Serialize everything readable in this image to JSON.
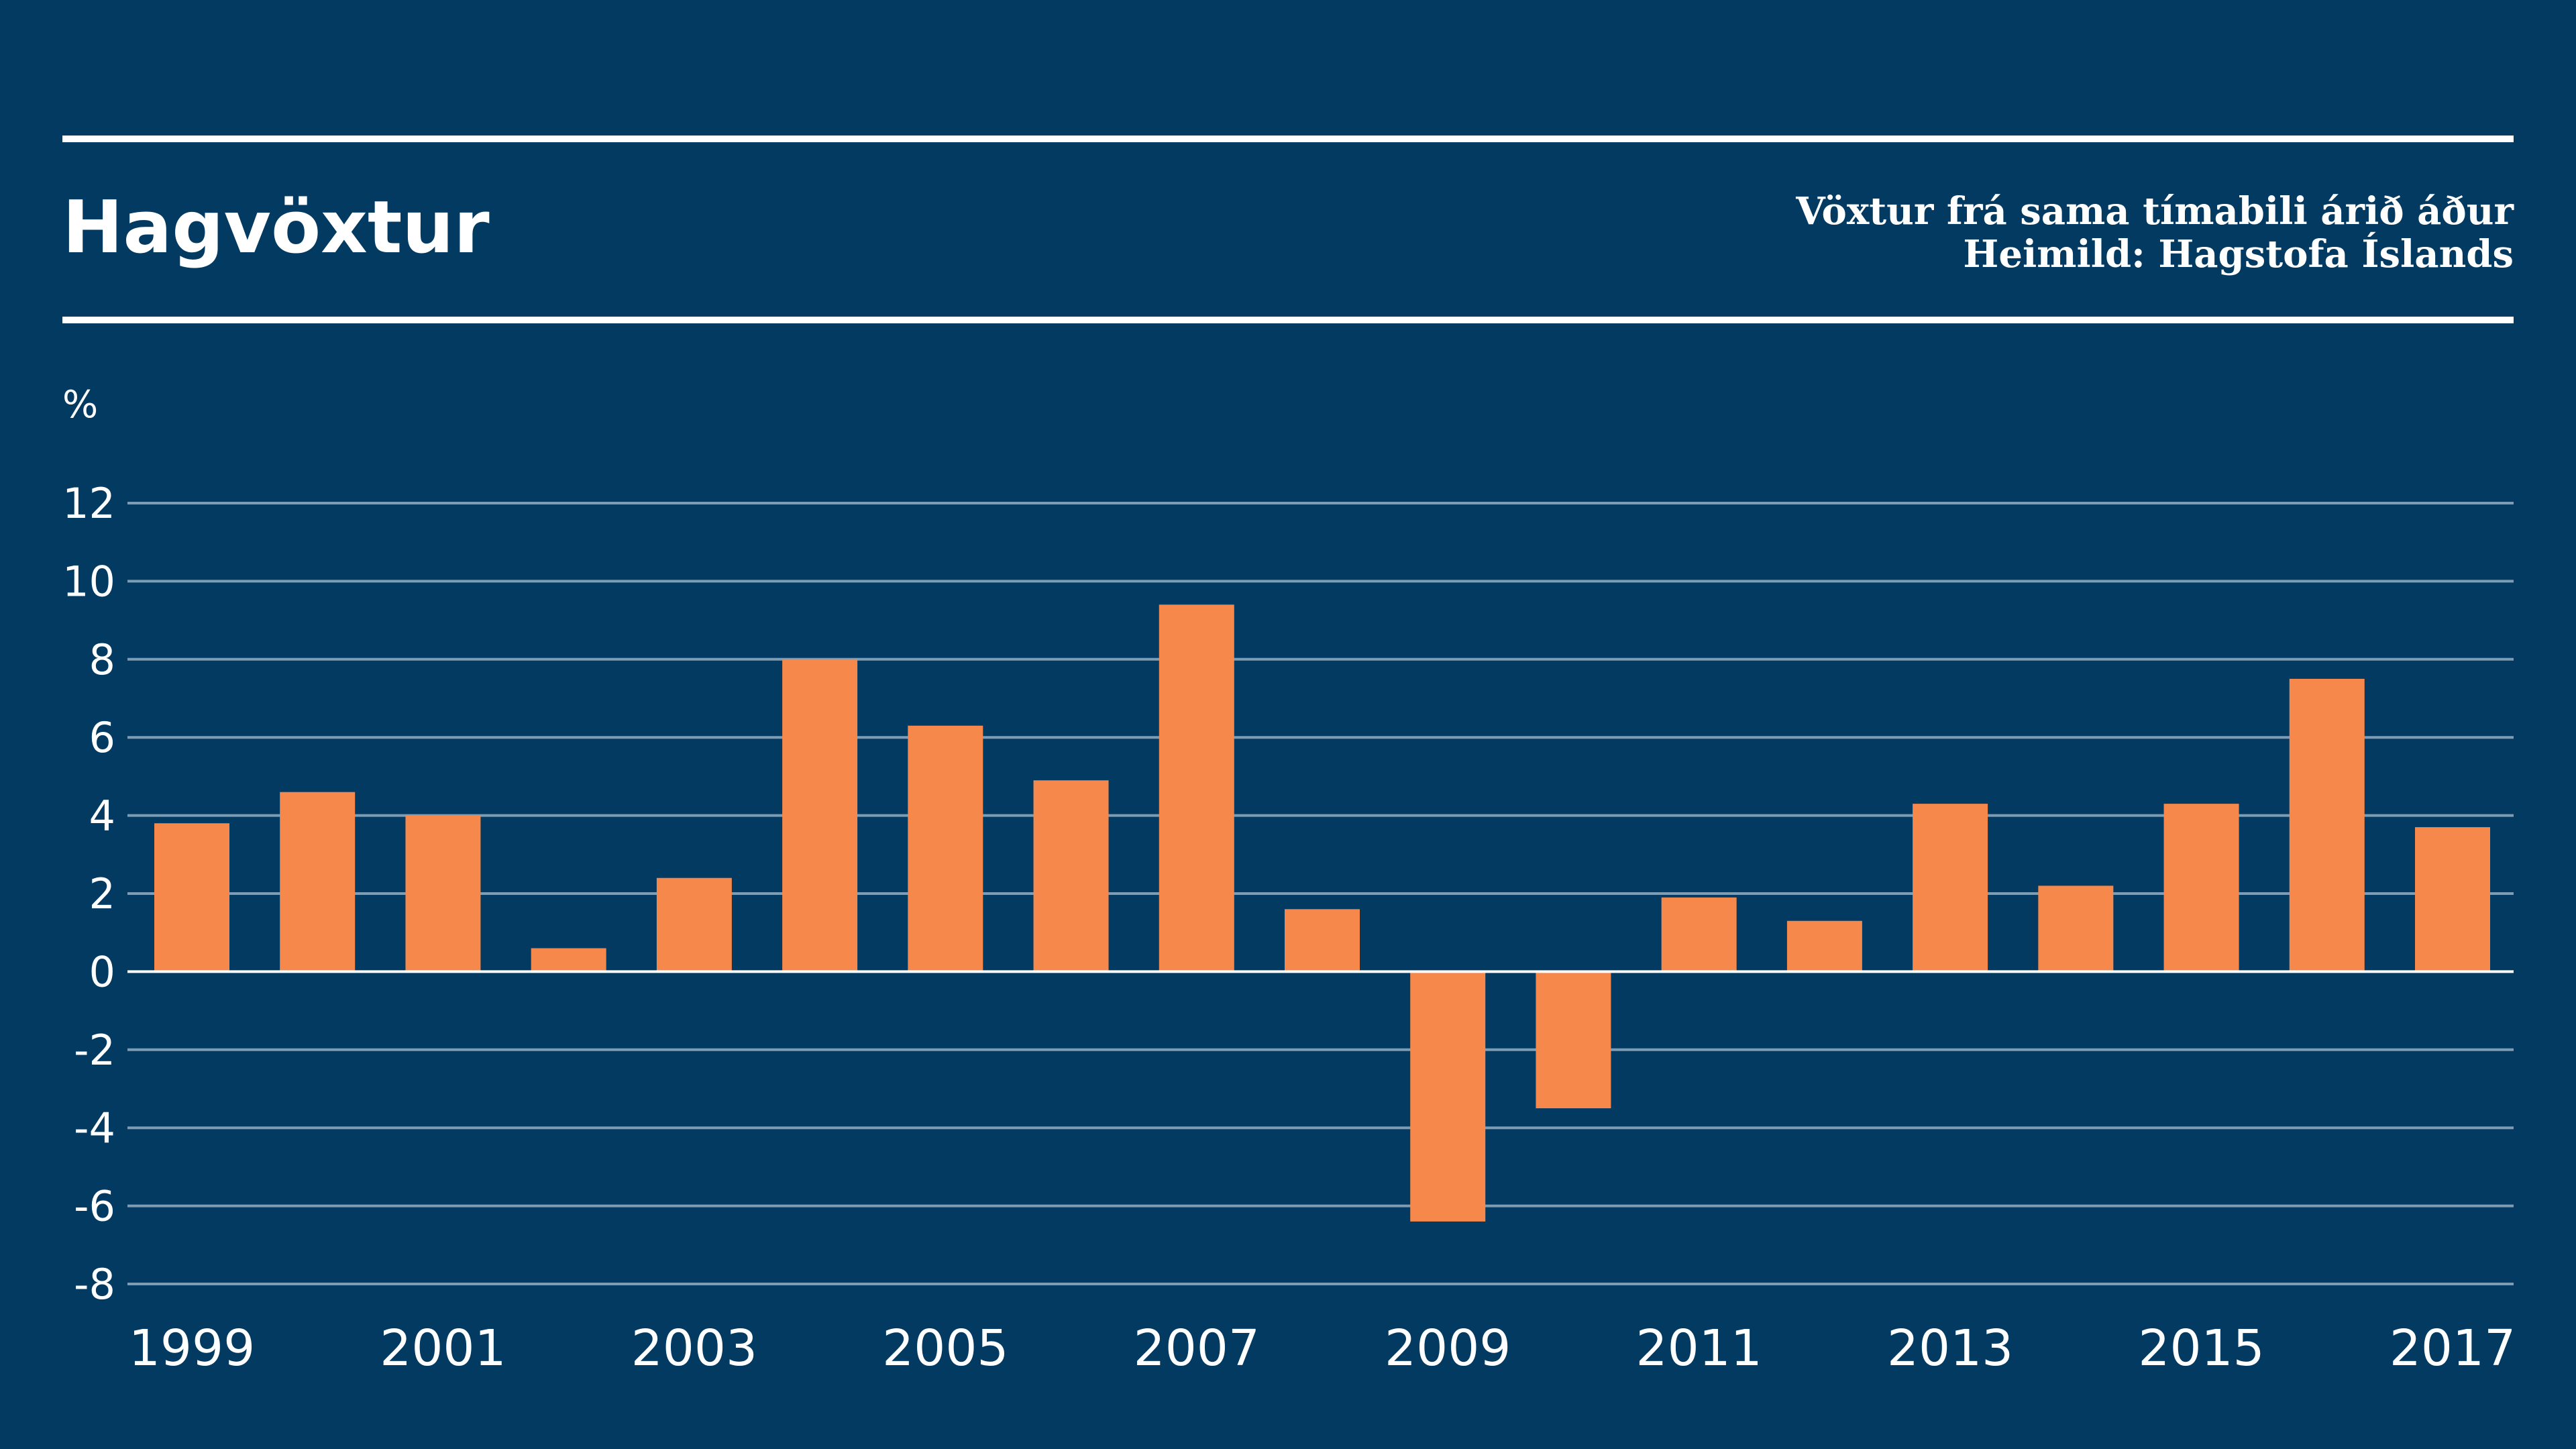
{
  "header": {
    "title": "Hagvöxtur",
    "subtitle": "Vöxtur frá sama tímabili árið áður",
    "source": "Heimild: Hagstofa Íslands"
  },
  "colors": {
    "background": "#023a62",
    "bar": "#f5884a",
    "grid": "#7f9cb5",
    "text": "#ffffff"
  },
  "chart_data": {
    "type": "bar",
    "title": "Hagvöxtur",
    "subtitle": "Vöxtur frá sama tímabili árið áður",
    "ylabel": "%",
    "ylim": [
      -8,
      12
    ],
    "yticks": [
      12,
      10,
      8,
      6,
      4,
      2,
      0,
      -2,
      -4,
      -6,
      -8
    ],
    "ytick_labels": [
      "12",
      "10",
      "8",
      "6",
      "4",
      "2",
      "0",
      "-2",
      "-4",
      "-6",
      "-8"
    ],
    "categories": [
      "1999",
      "2000",
      "2001",
      "2002",
      "2003",
      "2004",
      "2005",
      "2006",
      "2007",
      "2008",
      "2009",
      "2010",
      "2011",
      "2012",
      "2013",
      "2014",
      "2015",
      "2016",
      "2017"
    ],
    "xtick_labels": [
      "1999",
      "2001",
      "2003",
      "2005",
      "2007",
      "2009",
      "2011",
      "2013",
      "2015",
      "2017"
    ],
    "values": [
      3.8,
      4.6,
      4.0,
      0.6,
      2.4,
      8.0,
      6.3,
      4.9,
      9.4,
      1.6,
      -6.4,
      -3.5,
      1.9,
      1.3,
      4.3,
      2.2,
      4.3,
      7.5,
      3.7
    ],
    "grid": true,
    "legend": "none"
  }
}
